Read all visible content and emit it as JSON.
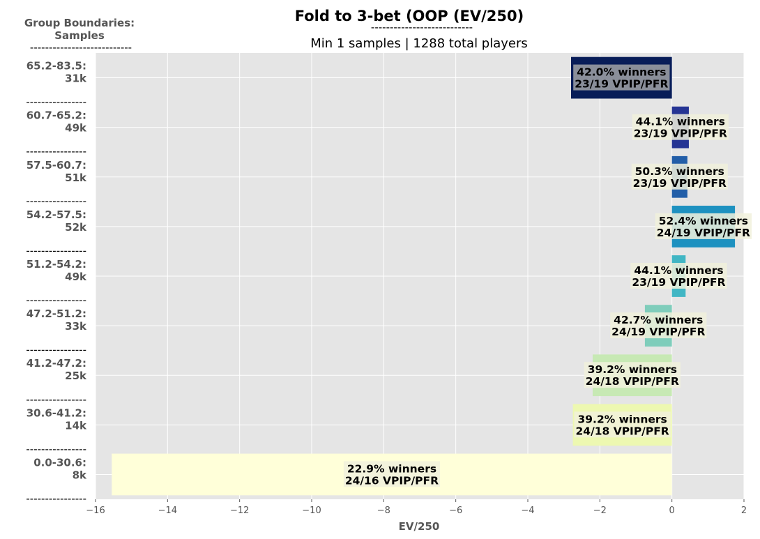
{
  "chart_data": {
    "type": "bar",
    "orientation": "horizontal",
    "title": "Fold to 3-bet (OOP (EV/250)",
    "title_underline": "---------------------------",
    "subtitle": "Min 1 samples | 1288 total players",
    "y_header": [
      "Group Boundaries:",
      "Samples",
      "---------------------------"
    ],
    "xlabel": "EV/250",
    "xlim": [
      -16,
      2
    ],
    "xticks": [
      -16,
      -14,
      -12,
      -10,
      -8,
      -6,
      -4,
      -2,
      0,
      2
    ],
    "xtick_labels": [
      "−16",
      "−14",
      "−12",
      "−10",
      "−8",
      "−6",
      "−4",
      "−2",
      "0",
      "2"
    ],
    "separator": "----------------",
    "bars": [
      {
        "range": "65.2-83.5:",
        "samples": "31k",
        "value": -2.8,
        "winners": "42.0% winners",
        "vpip_pfr": "23/19 VPIP/PFR",
        "color": "#081d58",
        "label_box": "#8a8f9a"
      },
      {
        "range": "60.7-65.2:",
        "samples": "49k",
        "value": 0.47,
        "winners": "44.1% winners",
        "vpip_pfr": "23/19 VPIP/PFR",
        "color": "#253494",
        "label_box": "#f1f1dc"
      },
      {
        "range": "57.5-60.7:",
        "samples": "51k",
        "value": 0.43,
        "winners": "50.3% winners",
        "vpip_pfr": "23/19 VPIP/PFR",
        "color": "#225ea8",
        "label_box": "#f1f1dc"
      },
      {
        "range": "54.2-57.5:",
        "samples": "52k",
        "value": 1.75,
        "winners": "52.4% winners",
        "vpip_pfr": "24/19 VPIP/PFR",
        "color": "#1d91c0",
        "label_box": "#f1f1dc"
      },
      {
        "range": "51.2-54.2:",
        "samples": "49k",
        "value": 0.38,
        "winners": "44.1% winners",
        "vpip_pfr": "23/19 VPIP/PFR",
        "color": "#41b6c4",
        "label_box": "#f1f1dc"
      },
      {
        "range": "47.2-51.2:",
        "samples": "33k",
        "value": -0.75,
        "winners": "42.7% winners",
        "vpip_pfr": "24/19 VPIP/PFR",
        "color": "#7fcdbb",
        "label_box": "#f1f1dc"
      },
      {
        "range": "41.2-47.2:",
        "samples": "25k",
        "value": -2.2,
        "winners": "39.2% winners",
        "vpip_pfr": "24/18 VPIP/PFR",
        "color": "#c7e9b4",
        "label_box": "#f1f1dc"
      },
      {
        "range": "30.6-41.2:",
        "samples": "14k",
        "value": -2.75,
        "winners": "39.2% winners",
        "vpip_pfr": "24/18 VPIP/PFR",
        "color": "#edf8b1",
        "label_box": "#f1f1dc"
      },
      {
        "range": "0.0-30.6:",
        "samples": "8k",
        "value": -15.55,
        "winners": "22.9% winners",
        "vpip_pfr": "24/16 VPIP/PFR",
        "color": "#ffffd9",
        "label_box": "#f1f1dc"
      }
    ]
  }
}
